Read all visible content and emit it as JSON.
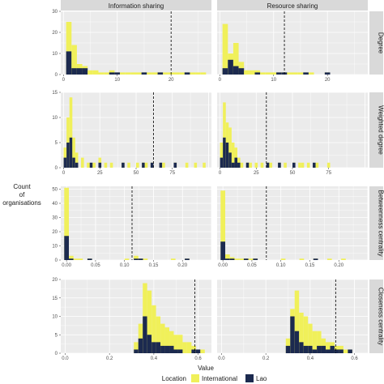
{
  "chart_data": {
    "type": "bar",
    "subtype": "faceted stacked histogram",
    "y_axis_title": "Count of organisations",
    "x_axis_title": "Value",
    "columns": [
      "Information sharing",
      "Resource sharing"
    ],
    "legend": {
      "title": "Location",
      "position": "bottom",
      "entries": [
        {
          "label": "International",
          "color": "#f0f05a"
        },
        {
          "label": "Lao",
          "color": "#1c2a4f"
        }
      ]
    },
    "colors": {
      "International": "#f0f05a",
      "Lao": "#1c2a4f",
      "panel_bg": "#ebebeb",
      "strip_bg": "#d9d9d9",
      "grid": "#ffffff"
    },
    "grid": true,
    "rows": [
      {
        "label": "Degree",
        "ylim": [
          0,
          30
        ],
        "yticks": [
          "0",
          "10",
          "20",
          "30"
        ],
        "xlim": [
          -0.5,
          27.5
        ],
        "xticks": [
          0,
          10,
          20
        ],
        "xtick_labels": [
          "0",
          "10",
          "20"
        ],
        "panels": [
          {
            "bins": [
              0,
              1,
              2,
              3,
              4,
              5,
              6,
              7,
              8,
              9,
              10,
              11,
              12,
              13,
              14,
              15,
              16,
              17,
              18,
              19,
              20,
              21,
              22,
              23,
              24,
              25,
              26
            ],
            "international": [
              0,
              25,
              14,
              5,
              4,
              2,
              2,
              1,
              1,
              2,
              1,
              1,
              1,
              1,
              1,
              1,
              1,
              1,
              1,
              1,
              1,
              1,
              1,
              1,
              1,
              1,
              1
            ],
            "lao": [
              0,
              11,
              3,
              3,
              3,
              0,
              0,
              0,
              0,
              1,
              1,
              0,
              0,
              0,
              0,
              1,
              0,
              0,
              1,
              0,
              0,
              0,
              0,
              1,
              0,
              0,
              0
            ],
            "binwidth": 1,
            "dashed_line": 20
          },
          {
            "bins": [
              0,
              1,
              2,
              3,
              4,
              5,
              6,
              7,
              8,
              9,
              10,
              11,
              12,
              13,
              14,
              15,
              16,
              17,
              18,
              19,
              20,
              21,
              22,
              23,
              24,
              25,
              26
            ],
            "international": [
              0,
              24,
              10,
              15,
              6,
              2,
              2,
              2,
              1,
              1,
              1,
              1,
              1,
              1,
              1,
              1,
              1,
              1,
              0,
              0,
              1,
              0,
              0,
              0,
              0,
              0,
              0
            ],
            "lao": [
              0,
              3,
              7,
              4,
              3,
              0,
              0,
              1,
              0,
              0,
              0,
              1,
              1,
              0,
              0,
              0,
              1,
              0,
              0,
              0,
              1,
              0,
              0,
              0,
              0,
              0,
              0
            ],
            "binwidth": 1,
            "dashed_line": 12
          }
        ]
      },
      {
        "label": "Weighted degree",
        "ylim": [
          0,
          15
        ],
        "yticks": [
          "0",
          "5",
          "10",
          "15"
        ],
        "xlim": [
          -2,
          102
        ],
        "xticks": [
          0,
          25,
          50,
          75
        ],
        "xtick_labels": [
          "0",
          "25",
          "50",
          "75"
        ],
        "panels": [
          {
            "bins": [
              1,
              3,
              5,
              7,
              9,
              11,
              13,
              15,
              17,
              19,
              21,
              23,
              25,
              27,
              29,
              31,
              33,
              35,
              37,
              39,
              41,
              43,
              45,
              47,
              49,
              51,
              53,
              55,
              57,
              59,
              61,
              63,
              65,
              67,
              69,
              71,
              73,
              75,
              77,
              79,
              81,
              83,
              85,
              87,
              89,
              91,
              93,
              95,
              97
            ],
            "international": [
              4,
              10,
              14,
              6,
              3,
              0,
              2,
              0,
              1,
              0,
              1,
              0,
              2,
              0,
              1,
              0,
              1,
              0,
              0,
              0,
              1,
              0,
              1,
              0,
              0,
              1,
              0,
              1,
              1,
              0,
              1,
              0,
              0,
              0,
              1,
              0,
              0,
              0,
              1,
              0,
              0,
              0,
              1,
              0,
              0,
              1,
              0,
              0,
              1
            ],
            "lao": [
              2,
              5,
              6,
              2,
              1,
              0,
              0,
              0,
              0,
              1,
              0,
              0,
              1,
              0,
              0,
              0,
              0,
              0,
              0,
              0,
              1,
              0,
              0,
              0,
              0,
              0,
              0,
              1,
              0,
              0,
              1,
              0,
              0,
              1,
              0,
              0,
              0,
              0,
              1,
              0,
              0,
              0,
              0,
              0,
              0,
              0,
              0,
              0,
              0
            ],
            "binwidth": 2,
            "dashed_line": 62
          },
          {
            "bins": [
              1,
              3,
              5,
              7,
              9,
              11,
              13,
              15,
              17,
              19,
              21,
              23,
              25,
              27,
              29,
              31,
              33,
              35,
              37,
              39,
              41,
              43,
              45,
              47,
              49,
              51,
              53,
              55,
              57,
              59,
              61,
              63,
              65,
              67,
              69,
              71,
              73,
              75,
              77,
              79,
              81,
              83,
              85,
              87,
              89,
              91,
              93,
              95,
              97
            ],
            "international": [
              5,
              13,
              9,
              8,
              5,
              4,
              2,
              1,
              0,
              1,
              1,
              0,
              1,
              0,
              1,
              0,
              1,
              1,
              0,
              0,
              1,
              0,
              1,
              0,
              0,
              1,
              0,
              1,
              1,
              0,
              1,
              0,
              0,
              1,
              0,
              0,
              0,
              1,
              0,
              0,
              0,
              0,
              0,
              0,
              0,
              0,
              0,
              0,
              0
            ],
            "lao": [
              2,
              6,
              5,
              3,
              1,
              2,
              1,
              0,
              0,
              1,
              0,
              0,
              0,
              0,
              0,
              0,
              1,
              0,
              0,
              0,
              1,
              0,
              0,
              0,
              0,
              1,
              0,
              0,
              0,
              0,
              0,
              0,
              1,
              0,
              0,
              0,
              0,
              0,
              0,
              0,
              0,
              0,
              0,
              0,
              0,
              0,
              0,
              0,
              0
            ],
            "binwidth": 2,
            "dashed_line": 32
          }
        ]
      },
      {
        "label": "Betweenness centrality",
        "ylim": [
          0,
          52
        ],
        "yticks": [
          "0",
          "10",
          "20",
          "30",
          "40",
          "50"
        ],
        "xlim": [
          -0.01,
          0.25
        ],
        "xticks": [
          0,
          0.05,
          0.1,
          0.15,
          0.2
        ],
        "xtick_labels": [
          "0.00",
          "0.05",
          "0.10",
          "0.15",
          "0.20"
        ],
        "panels": [
          {
            "bins": [
              0,
              0.008,
              0.016,
              0.024,
              0.032,
              0.04,
              0.048,
              0.056,
              0.064,
              0.072,
              0.08,
              0.088,
              0.096,
              0.104,
              0.112,
              0.12,
              0.128,
              0.136,
              0.144,
              0.152,
              0.16,
              0.168,
              0.176,
              0.184,
              0.192,
              0.2,
              0.208
            ],
            "international": [
              51,
              3,
              1,
              1,
              0,
              1,
              0,
              0,
              0,
              0,
              0,
              0,
              0,
              1,
              0,
              3,
              1,
              1,
              0,
              0,
              0,
              0,
              0,
              1,
              0,
              0,
              1
            ],
            "lao": [
              17,
              1,
              0,
              0,
              0,
              1,
              0,
              0,
              0,
              0,
              0,
              0,
              0,
              0,
              0,
              1,
              1,
              0,
              0,
              0,
              0,
              0,
              0,
              0,
              0,
              0,
              1
            ],
            "binwidth": 0.008,
            "dashed_line": 0.113
          },
          {
            "bins": [
              0,
              0.008,
              0.016,
              0.024,
              0.032,
              0.04,
              0.048,
              0.056,
              0.064,
              0.072,
              0.08,
              0.088,
              0.096,
              0.104,
              0.112,
              0.12,
              0.128,
              0.136,
              0.144,
              0.152,
              0.16,
              0.168,
              0.176,
              0.184,
              0.192,
              0.2,
              0.208
            ],
            "international": [
              49,
              4,
              2,
              1,
              1,
              1,
              1,
              1,
              0,
              0,
              0,
              0,
              0,
              1,
              0,
              0,
              0,
              1,
              0,
              0,
              1,
              0,
              0,
              1,
              0,
              0,
              1
            ],
            "lao": [
              13,
              1,
              1,
              0,
              0,
              1,
              0,
              1,
              0,
              0,
              0,
              0,
              0,
              0,
              0,
              0,
              0,
              0,
              0,
              0,
              1,
              0,
              0,
              0,
              0,
              0,
              0
            ],
            "binwidth": 0.008,
            "dashed_line": 0.075
          }
        ]
      },
      {
        "label": "Closeness centrality",
        "ylim": [
          0,
          20
        ],
        "yticks": [
          "0",
          "5",
          "10",
          "15",
          "20"
        ],
        "xlim": [
          -0.02,
          0.66
        ],
        "xticks": [
          0,
          0.2,
          0.4,
          0.6
        ],
        "xtick_labels": [
          "0.0",
          "0.2",
          "0.4",
          "0.6"
        ],
        "panels": [
          {
            "bins": [
              0.32,
              0.34,
              0.36,
              0.38,
              0.4,
              0.42,
              0.44,
              0.46,
              0.48,
              0.5,
              0.52,
              0.54,
              0.56,
              0.58,
              0.6,
              0.62
            ],
            "international": [
              3,
              8,
              19,
              17,
              13,
              10,
              8,
              7,
              6,
              5,
              5,
              3,
              3,
              2,
              1,
              1
            ],
            "lao": [
              1,
              4,
              10,
              5,
              3,
              3,
              2,
              2,
              2,
              1,
              1,
              0,
              0,
              1,
              1,
              0
            ],
            "binwidth": 0.02,
            "dashed_line": 0.585
          },
          {
            "bins": [
              0.3,
              0.32,
              0.34,
              0.36,
              0.38,
              0.4,
              0.42,
              0.44,
              0.46,
              0.48,
              0.5,
              0.52,
              0.54,
              0.56,
              0.58,
              0.6
            ],
            "international": [
              4,
              12,
              17,
              11,
              10,
              8,
              6,
              6,
              4,
              3,
              3,
              2,
              2,
              1,
              1,
              0
            ],
            "lao": [
              2,
              10,
              6,
              3,
              2,
              2,
              1,
              2,
              2,
              1,
              2,
              1,
              1,
              0,
              1,
              0
            ],
            "binwidth": 0.02,
            "dashed_line": 0.515
          }
        ]
      }
    ]
  }
}
